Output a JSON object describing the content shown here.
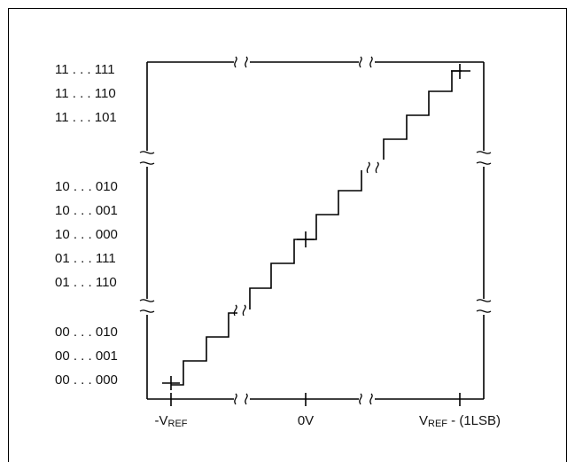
{
  "y_codes": [
    {
      "label": "11 . . . 111"
    },
    {
      "label": "11 . . . 110"
    },
    {
      "label": "11 . . . 101"
    },
    {
      "label": "10 . . . 010"
    },
    {
      "label": "10 . . . 001"
    },
    {
      "label": "10 . . . 000"
    },
    {
      "label": "01 . . . 111"
    },
    {
      "label": "01 . . . 110"
    },
    {
      "label": "00 . . . 010"
    },
    {
      "label": "00 . . . 001"
    },
    {
      "label": "00 . . . 000"
    }
  ],
  "x_labels": {
    "neg": {
      "prefix": "-V",
      "sub": "REF",
      "suffix": ""
    },
    "zero": {
      "prefix": "0V",
      "sub": "",
      "suffix": ""
    },
    "pos": {
      "prefix": "V",
      "sub": "REF",
      "suffix": " - (1LSB)"
    }
  }
}
